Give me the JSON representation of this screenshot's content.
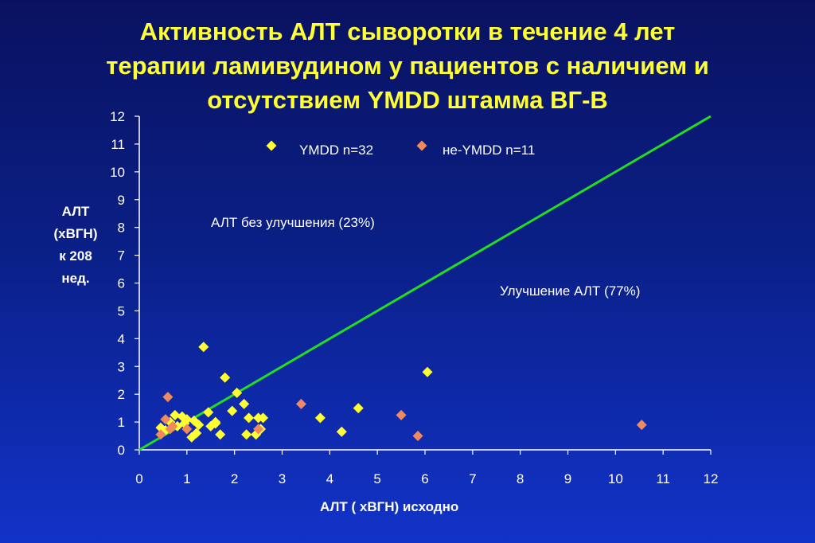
{
  "title_lines": [
    "Активность АЛТ сыворотки в течение 4 лет",
    "терапии ламивудином у пациентов с наличием и",
    "отсутствием YMDD штамма ВГ-В"
  ],
  "ylabel_lines": [
    "АЛТ",
    "(хВГН)",
    "к 208",
    "нед."
  ],
  "annotations": {
    "no_improvement": "АЛТ без улучшения (23%)",
    "improvement": "Улучшение АЛТ  (77%)"
  },
  "colors": {
    "ymdd": "#ffff33",
    "non_ymdd": "#f08a5d",
    "diagonal": "#22dd22",
    "axis": "#ffffff"
  },
  "chart_data": {
    "type": "scatter",
    "title": "Активность АЛТ сыворотки в течение 4 лет терапии ламивудином у пациентов с наличием и отсутствием YMDD штамма ВГ-В",
    "xlabel": "АЛТ ( хВГН) исходно",
    "ylabel": "АЛТ (хВГН) к 208 нед.",
    "xlim": [
      0,
      12
    ],
    "ylim": [
      0,
      12
    ],
    "xticks": [
      "0",
      "1",
      "2",
      "3",
      "4",
      "5",
      "6",
      "7",
      "8",
      "9",
      "10",
      "11",
      "12"
    ],
    "yticks": [
      "0",
      "1",
      "2",
      "3",
      "4",
      "5",
      "6",
      "7",
      "8",
      "9",
      "10",
      "11",
      "12"
    ],
    "grid": false,
    "legend_position": "top",
    "reference_line": {
      "from": [
        0,
        0
      ],
      "to": [
        12,
        12
      ]
    },
    "series": [
      {
        "name": "YMDD n=32",
        "marker": "diamond",
        "points": [
          [
            0.45,
            0.8
          ],
          [
            0.55,
            0.7
          ],
          [
            0.65,
            1.0
          ],
          [
            0.75,
            1.25
          ],
          [
            0.8,
            0.85
          ],
          [
            0.9,
            1.2
          ],
          [
            0.95,
            0.95
          ],
          [
            1.0,
            1.1
          ],
          [
            1.1,
            0.45
          ],
          [
            1.15,
            1.05
          ],
          [
            1.2,
            0.6
          ],
          [
            1.25,
            0.9
          ],
          [
            1.35,
            3.7
          ],
          [
            1.45,
            1.35
          ],
          [
            1.5,
            0.85
          ],
          [
            1.6,
            1.0
          ],
          [
            1.7,
            0.55
          ],
          [
            1.8,
            2.6
          ],
          [
            1.95,
            1.4
          ],
          [
            2.05,
            2.05
          ],
          [
            2.2,
            1.65
          ],
          [
            2.25,
            0.55
          ],
          [
            2.3,
            1.15
          ],
          [
            2.45,
            0.55
          ],
          [
            2.5,
            1.15
          ],
          [
            2.55,
            0.75
          ],
          [
            2.6,
            1.15
          ],
          [
            3.8,
            1.15
          ],
          [
            4.25,
            0.65
          ],
          [
            4.6,
            1.5
          ],
          [
            6.05,
            2.8
          ],
          [
            1.6,
            0.95
          ]
        ]
      },
      {
        "name": "не-YMDD n=11",
        "marker": "diamond",
        "points": [
          [
            0.45,
            0.55
          ],
          [
            0.55,
            1.1
          ],
          [
            0.6,
            1.9
          ],
          [
            0.65,
            0.75
          ],
          [
            0.7,
            0.85
          ],
          [
            1.0,
            0.75
          ],
          [
            2.5,
            0.75
          ],
          [
            3.4,
            1.65
          ],
          [
            5.5,
            1.25
          ],
          [
            5.85,
            0.5
          ],
          [
            10.55,
            0.9
          ]
        ]
      }
    ]
  }
}
